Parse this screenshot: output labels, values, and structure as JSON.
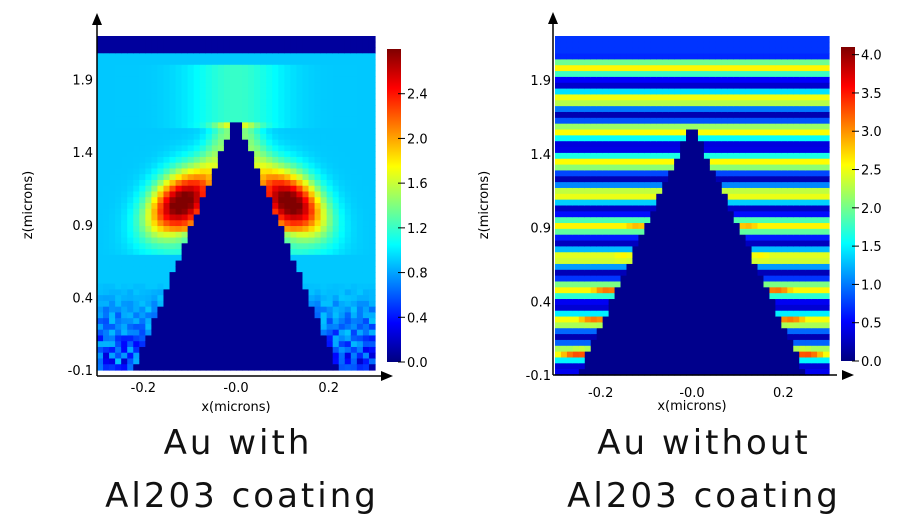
{
  "chart_data": [
    {
      "type": "heatmap",
      "title": "",
      "caption": [
        "Au  with",
        "Al203  coating"
      ],
      "xlabel": "x(microns)",
      "ylabel": "z(microns)",
      "x_ticks": [
        "-0.2",
        "-0.0",
        "0.2"
      ],
      "x_tick_values": [
        -0.2,
        0.0,
        0.2
      ],
      "y_ticks": [
        "-0.1",
        "0.4",
        "0.9",
        "1.4",
        "1.9"
      ],
      "y_tick_values": [
        -0.1,
        0.4,
        0.9,
        1.4,
        1.9
      ],
      "xlim": [
        -0.3,
        0.3
      ],
      "ylim": [
        -0.1,
        2.2
      ],
      "colorbar_ticks": [
        "0.0",
        "0.4",
        "0.8",
        "1.2",
        "1.6",
        "2.0",
        "2.4"
      ],
      "colorbar_tick_values": [
        0.0,
        0.4,
        0.8,
        1.2,
        1.6,
        2.0,
        2.4
      ],
      "colorbar_range": [
        0.0,
        2.8
      ],
      "colormap": "jet",
      "tip_apex": [
        0.0,
        1.65
      ],
      "tip_base_half_width": 0.22,
      "coating_top": 2.08,
      "field_model": {
        "background": 0.9,
        "hotspot_max": 2.8,
        "hotspot_z_center": 1.05,
        "substrate_noise_below_z": 0.5
      }
    },
    {
      "type": "heatmap",
      "title": "",
      "caption": [
        "Au  without",
        "Al203  coating"
      ],
      "xlabel": "x(microns)",
      "ylabel": "z(microns)",
      "x_ticks": [
        "-0.2",
        "-0.0",
        "0.2"
      ],
      "x_tick_values": [
        -0.2,
        0.0,
        0.2
      ],
      "y_ticks": [
        "-0.1",
        "0.4",
        "0.9",
        "1.4",
        "1.9"
      ],
      "y_tick_values": [
        -0.1,
        0.4,
        0.9,
        1.4,
        1.9
      ],
      "xlim": [
        -0.3,
        0.3
      ],
      "ylim": [
        -0.1,
        2.2
      ],
      "colorbar_ticks": [
        "0.0",
        "0.5",
        "1.0",
        "1.5",
        "2.0",
        "2.5",
        "3.0",
        "3.5",
        "4.0"
      ],
      "colorbar_tick_values": [
        0.0,
        0.5,
        1.0,
        1.5,
        2.0,
        2.5,
        3.0,
        3.5,
        4.0
      ],
      "colorbar_range": [
        0.0,
        4.1
      ],
      "colormap": "jet",
      "tip_apex": [
        0.0,
        1.6
      ],
      "tip_base_half_width": 0.25,
      "coating_top": 2.08,
      "field_model": {
        "background": 1.4,
        "standing_wave_period": 0.215,
        "hotspot_max": 3.5
      }
    }
  ]
}
